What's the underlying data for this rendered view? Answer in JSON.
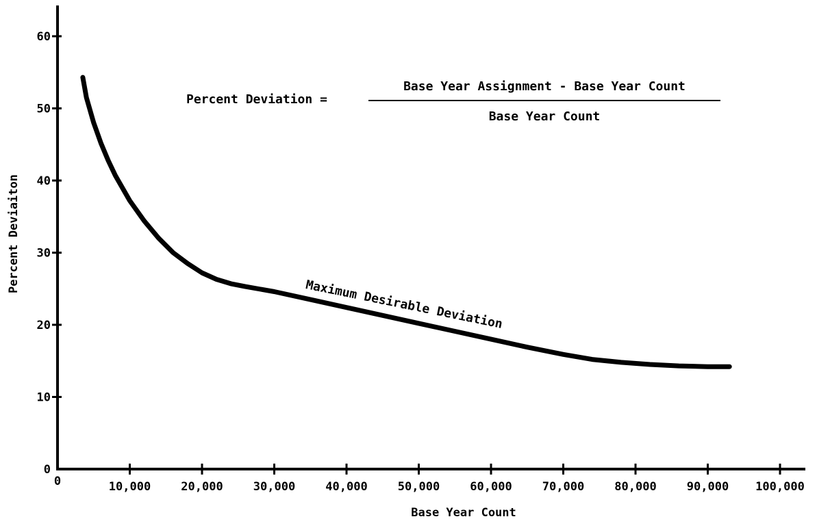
{
  "chart_data": {
    "type": "line",
    "xlabel": "Base Year Count",
    "ylabel": "Percent Deviaiton",
    "xlim": [
      0,
      103000
    ],
    "ylim": [
      0,
      64
    ],
    "x_ticks": [
      0,
      10000,
      20000,
      30000,
      40000,
      50000,
      60000,
      70000,
      80000,
      90000,
      100000
    ],
    "x_tick_labels": [
      "0",
      "10,000",
      "20,000",
      "30,000",
      "40,000",
      "50,000",
      "60,000",
      "70,000",
      "80,000",
      "90,000",
      "100,000"
    ],
    "y_ticks": [
      0,
      10,
      20,
      30,
      40,
      50,
      60
    ],
    "y_tick_labels": [
      "0",
      "10",
      "20",
      "30",
      "40",
      "50",
      "60"
    ],
    "grid": false,
    "formula": {
      "lhs": "Percent Deviation =",
      "numerator": "Base Year Assignment - Base Year Count",
      "denominator": "Base Year Count"
    },
    "series": [
      {
        "name": "Maximum Desirable Deviation",
        "color": "#000000",
        "x": [
          3500,
          4000,
          5000,
          6000,
          7000,
          8000,
          10000,
          12000,
          14000,
          16000,
          18000,
          20000,
          22000,
          24000,
          26000,
          30000,
          35000,
          40000,
          45000,
          50000,
          55000,
          60000,
          65000,
          70000,
          74000,
          78000,
          82000,
          86000,
          90000,
          93000
        ],
        "y": [
          54.3,
          51.5,
          48.0,
          45.2,
          42.8,
          40.7,
          37.2,
          34.4,
          32.0,
          30.0,
          28.5,
          27.2,
          26.3,
          25.7,
          25.3,
          24.6,
          23.5,
          22.4,
          21.3,
          20.2,
          19.1,
          18.0,
          16.9,
          15.9,
          15.2,
          14.8,
          14.5,
          14.3,
          14.2,
          14.2
        ]
      }
    ]
  }
}
